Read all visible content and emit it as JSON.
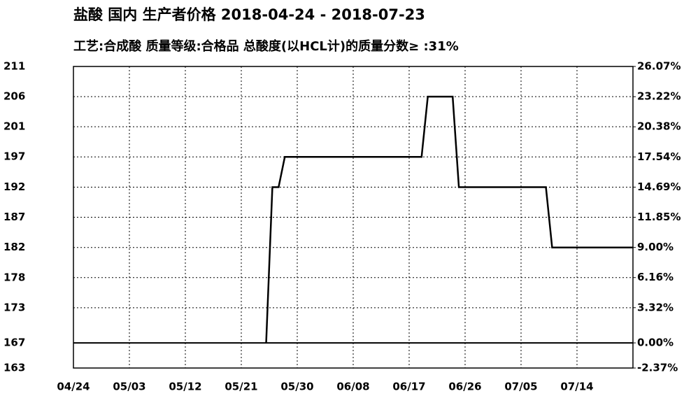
{
  "chart_data": {
    "type": "line",
    "title": "盐酸 国内 生产者价格 2018-04-24 - 2018-07-23",
    "subtitle": "工艺:合成酸 质量等级:合格品 总酸度(以HCL计)的质量分数≥ :31%",
    "series": [
      {
        "name": "盐酸",
        "color": "#000000",
        "x": [
          "05/25",
          "05/26",
          "05/27",
          "05/28",
          "06/19",
          "06/20",
          "06/24",
          "06/25",
          "07/09",
          "07/10",
          "07/23"
        ],
        "values": [
          167.25,
          191.82,
          191.82,
          196.59,
          196.59,
          206.09,
          206.09,
          191.82,
          191.82,
          182.3,
          182.3
        ]
      }
    ],
    "xlim": [
      "04/24",
      "07/23"
    ],
    "xticks": [
      "04/24",
      "05/03",
      "05/12",
      "05/21",
      "05/30",
      "06/08",
      "06/17",
      "06/26",
      "07/05",
      "07/14"
    ],
    "ylim": [
      163.29,
      210.85
    ],
    "yticks": [
      {
        "value": 210.85,
        "label": "211"
      },
      {
        "value": 206.09,
        "label": "206"
      },
      {
        "value": 201.34,
        "label": "201"
      },
      {
        "value": 196.59,
        "label": "197"
      },
      {
        "value": 191.82,
        "label": "192"
      },
      {
        "value": 187.07,
        "label": "187"
      },
      {
        "value": 182.3,
        "label": "182"
      },
      {
        "value": 177.55,
        "label": "178"
      },
      {
        "value": 172.8,
        "label": "173"
      },
      {
        "value": 167.25,
        "label": "167"
      },
      {
        "value": 163.29,
        "label": "163"
      }
    ],
    "y2lim": [
      -2.37,
      26.07
    ],
    "y2ticks": [
      {
        "value": 26.07,
        "label": "26.07%"
      },
      {
        "value": 23.22,
        "label": "23.22%"
      },
      {
        "value": 20.38,
        "label": "20.38%"
      },
      {
        "value": 17.54,
        "label": "17.54%"
      },
      {
        "value": 14.69,
        "label": "14.69%"
      },
      {
        "value": 11.85,
        "label": "11.85%"
      },
      {
        "value": 9.0,
        "label": "9.00%"
      },
      {
        "value": 6.16,
        "label": "6.16%"
      },
      {
        "value": 3.32,
        "label": "3.32%"
      },
      {
        "value": 0,
        "label": "0.00%"
      },
      {
        "value": -2.37,
        "label": "-2.37%"
      }
    ],
    "grid": true
  }
}
